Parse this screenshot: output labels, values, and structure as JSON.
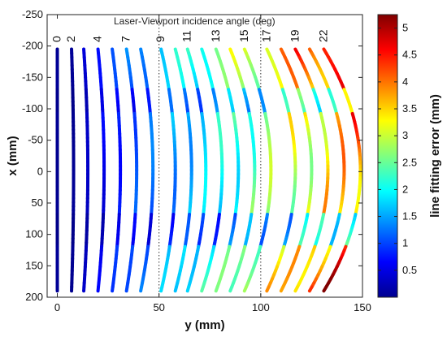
{
  "chart_data": {
    "type": "line",
    "title": "",
    "annotation": "Laser-Viewport incidence angle (deg)",
    "xlabel": "y (mm)",
    "ylabel": "x (mm)",
    "xlim": [
      -5,
      150
    ],
    "ylim": [
      -250,
      200
    ],
    "y_axis_reversed": true,
    "xticks": [
      "0",
      "50",
      "100",
      "150"
    ],
    "yticks": [
      "-250",
      "-200",
      "-150",
      "-100",
      "-50",
      "0",
      "50",
      "100",
      "150",
      "200"
    ],
    "grid": "dotted at y = 50 and y = 100 only",
    "colorbar": {
      "label": "line fitting error (mm)",
      "range": [
        0,
        5.25
      ],
      "ticks": [
        "0.5",
        "1",
        "1.5",
        "2",
        "2.5",
        "3",
        "3.5",
        "4",
        "4.5",
        "5"
      ],
      "colormap": "jet"
    },
    "x_range_of_lines": [
      -195,
      190
    ],
    "series": [
      {
        "angle": "0",
        "y_center": 0,
        "bow": 0,
        "error_top": 0.1,
        "error_mid": 0.1,
        "error_bottom": 0.1
      },
      {
        "angle": "2",
        "y_center": 7,
        "bow": 1,
        "error_top": 0.1,
        "error_mid": 0.1,
        "error_bottom": 0.1
      },
      {
        "angle": "",
        "y_center": 13,
        "bow": 2,
        "error_top": 0.5,
        "error_mid": 0.2,
        "error_bottom": 0.4
      },
      {
        "angle": "4",
        "y_center": 20,
        "bow": 3,
        "error_top": 0.8,
        "error_mid": 0.4,
        "error_bottom": 0.6
      },
      {
        "angle": "",
        "y_center": 27,
        "bow": 4,
        "error_top": 1.0,
        "error_mid": 0.6,
        "error_bottom": 0.9
      },
      {
        "angle": "7",
        "y_center": 34,
        "bow": 5,
        "error_top": 1.3,
        "error_mid": 0.8,
        "error_bottom": 1.2
      },
      {
        "angle": "",
        "y_center": 41,
        "bow": 6,
        "error_top": 1.5,
        "error_mid": 0.9,
        "error_bottom": 1.3
      },
      {
        "angle": "9",
        "y_center": 51,
        "bow": 7,
        "error_top": 1.8,
        "error_mid": 1.1,
        "error_bottom": 1.6
      },
      {
        "angle": "",
        "y_center": 58,
        "bow": 8,
        "error_top": 2.0,
        "error_mid": 1.2,
        "error_bottom": 1.8
      },
      {
        "angle": "11",
        "y_center": 64,
        "bow": 9,
        "error_top": 2.2,
        "error_mid": 1.3,
        "error_bottom": 2.0
      },
      {
        "angle": "",
        "y_center": 71,
        "bow": 10,
        "error_top": 2.4,
        "error_mid": 1.5,
        "error_bottom": 2.2
      },
      {
        "angle": "13",
        "y_center": 78,
        "bow": 11,
        "error_top": 2.6,
        "error_mid": 1.7,
        "error_bottom": 2.4
      },
      {
        "angle": "",
        "y_center": 85,
        "bow": 12,
        "error_top": 2.9,
        "error_mid": 1.9,
        "error_bottom": 2.7
      },
      {
        "angle": "15",
        "y_center": 92,
        "bow": 13,
        "error_top": 3.2,
        "error_mid": 2.1,
        "error_bottom": 3.0
      },
      {
        "angle": "17",
        "y_center": 103,
        "bow": 14,
        "error_top": 3.6,
        "error_mid": 2.3,
        "error_bottom": 3.4
      },
      {
        "angle": "",
        "y_center": 110,
        "bow": 15,
        "error_top": 3.9,
        "error_mid": 2.4,
        "error_bottom": 3.7
      },
      {
        "angle": "19",
        "y_center": 117,
        "bow": 16,
        "error_top": 4.2,
        "error_mid": 2.6,
        "error_bottom": 4.0
      },
      {
        "angle": "",
        "y_center": 124,
        "bow": 17,
        "error_top": 4.5,
        "error_mid": 2.7,
        "error_bottom": 4.3
      },
      {
        "angle": "22",
        "y_center": 131,
        "bow": 18,
        "error_top": 4.9,
        "error_mid": 2.9,
        "error_bottom": 4.7
      }
    ]
  }
}
